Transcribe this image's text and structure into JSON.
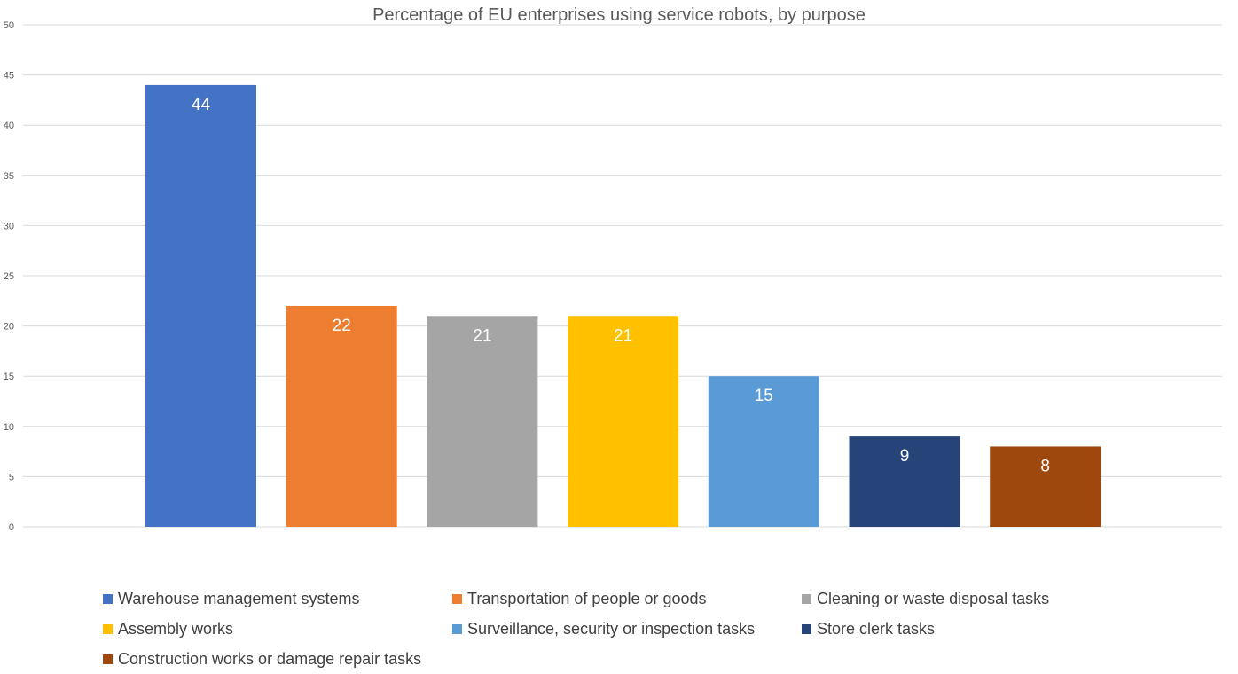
{
  "chart_data": {
    "type": "bar",
    "title": "Percentage of EU enterprises using service robots, by purpose",
    "ylim": [
      0,
      50
    ],
    "yticks": [
      0,
      5,
      10,
      15,
      20,
      25,
      30,
      35,
      40,
      45,
      50
    ],
    "grid": true,
    "legend_position": "bottom",
    "series": [
      {
        "name": "Warehouse management systems",
        "value": 44,
        "color": "#4472C4"
      },
      {
        "name": "Transportation of people or goods",
        "value": 22,
        "color": "#ED7D31"
      },
      {
        "name": "Cleaning or waste disposal tasks",
        "value": 21,
        "color": "#A5A5A5"
      },
      {
        "name": "Assembly works",
        "value": 21,
        "color": "#FFC000"
      },
      {
        "name": "Surveillance, security or inspection tasks",
        "value": 15,
        "color": "#5B9BD5"
      },
      {
        "name": "Store clerk tasks",
        "value": 9,
        "color": "#264478"
      },
      {
        "name": "Construction works or damage repair tasks",
        "value": 8,
        "color": "#9E480E"
      }
    ]
  }
}
